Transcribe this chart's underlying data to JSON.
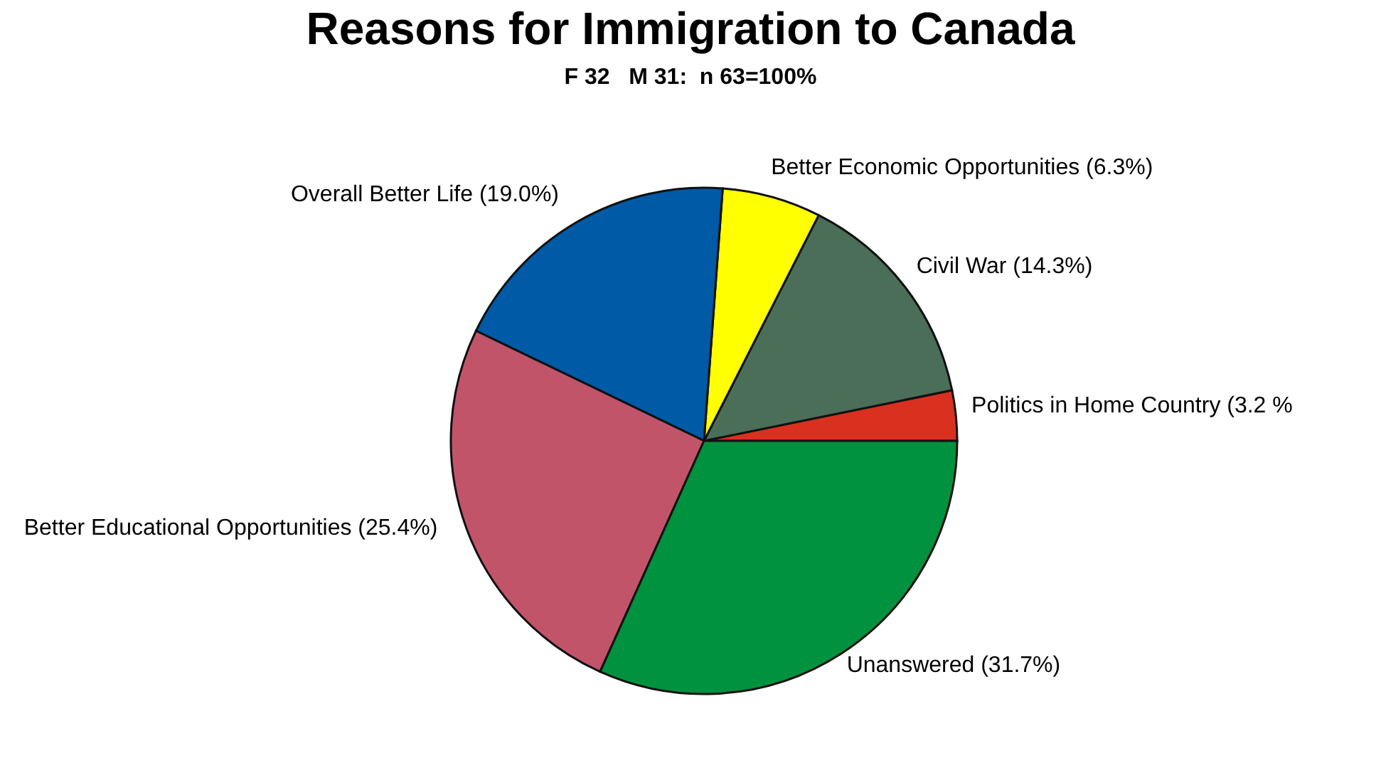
{
  "chart_data": {
    "type": "pie",
    "title": "Reasons for Immigration to Canada",
    "subtitle": "F 32   M 31:  n 63=100%",
    "categories": [
      "Politics in Home Country (3.2 %",
      "Civil War (14.3%)",
      "Better Economic Opportunities (6.3%)",
      "Overall Better Life (19.0%)",
      "Better Educational Opportunities (25.4%)",
      "Unanswered (31.7%)"
    ],
    "values": [
      3.2,
      14.3,
      6.3,
      19.0,
      25.4,
      31.7
    ],
    "colors": [
      "#d93020",
      "#4a6e58",
      "#ffff00",
      "#005aa5",
      "#c2546a",
      "#00923f"
    ]
  }
}
